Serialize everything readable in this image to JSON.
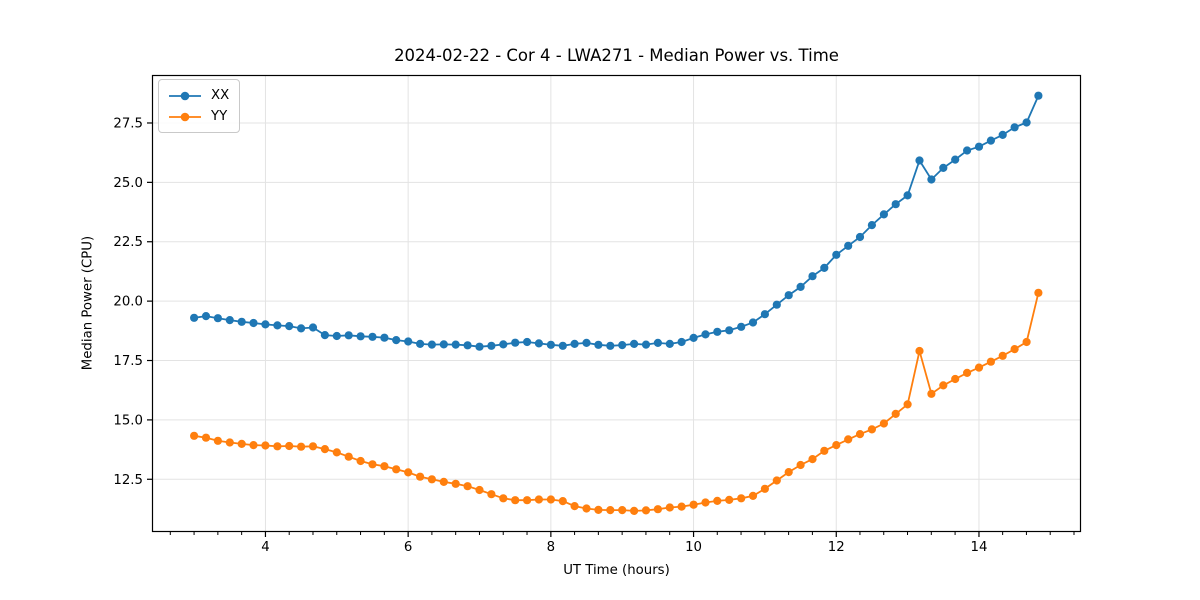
{
  "figure": {
    "title": "2024-02-22 - Cor 4 - LWA271 - Median Power vs. Time"
  },
  "chart_data": {
    "type": "line",
    "title": "2024-02-22 - Cor 4 - LWA271 - Median Power vs. Time",
    "xlabel": "UT Time (hours)",
    "ylabel": "Median Power (CPU)",
    "xlim": [
      2.41,
      15.43
    ],
    "ylim": [
      10.28,
      29.52
    ],
    "grid": true,
    "legend_position": "upper left",
    "x_ticks": [
      4,
      6,
      8,
      10,
      12,
      14
    ],
    "x_tick_labels": [
      "4",
      "6",
      "8",
      "10",
      "12",
      "14"
    ],
    "x_minor_tick_step": 0.3333,
    "y_ticks": [
      12.5,
      15.0,
      17.5,
      20.0,
      22.5,
      25.0,
      27.5
    ],
    "y_tick_labels": [
      "12.5",
      "15.0",
      "17.5",
      "20.0",
      "22.5",
      "25.0",
      "27.5"
    ],
    "marker": "circle",
    "x": [
      3.0,
      3.167,
      3.333,
      3.5,
      3.667,
      3.833,
      4.0,
      4.167,
      4.333,
      4.5,
      4.667,
      4.833,
      5.0,
      5.167,
      5.333,
      5.5,
      5.667,
      5.833,
      6.0,
      6.167,
      6.333,
      6.5,
      6.667,
      6.833,
      7.0,
      7.167,
      7.333,
      7.5,
      7.667,
      7.833,
      8.0,
      8.167,
      8.333,
      8.5,
      8.667,
      8.833,
      9.0,
      9.167,
      9.333,
      9.5,
      9.667,
      9.833,
      10.0,
      10.167,
      10.333,
      10.5,
      10.667,
      10.833,
      11.0,
      11.167,
      11.333,
      11.5,
      11.667,
      11.833,
      12.0,
      12.167,
      12.333,
      12.5,
      12.667,
      12.833,
      13.0,
      13.167,
      13.333,
      13.5,
      13.667,
      13.833,
      14.0,
      14.167,
      14.333,
      14.5,
      14.667,
      14.833
    ],
    "series": [
      {
        "name": "XX",
        "color": "#1f77b4",
        "values": [
          19.3,
          19.37,
          19.28,
          19.2,
          19.13,
          19.08,
          19.02,
          18.98,
          18.95,
          18.85,
          18.89,
          18.57,
          18.53,
          18.56,
          18.52,
          18.5,
          18.46,
          18.36,
          18.3,
          18.2,
          18.17,
          18.18,
          18.17,
          18.14,
          18.08,
          18.12,
          18.18,
          18.25,
          18.28,
          18.22,
          18.16,
          18.12,
          18.2,
          18.24,
          18.16,
          18.12,
          18.15,
          18.2,
          18.17,
          18.24,
          18.2,
          18.28,
          18.45,
          18.6,
          18.71,
          18.77,
          18.92,
          19.1,
          19.45,
          19.85,
          20.25,
          20.6,
          21.05,
          21.4,
          21.95,
          22.33,
          22.7,
          23.2,
          23.65,
          24.08,
          24.45,
          25.92,
          25.12,
          25.61,
          25.96,
          26.34,
          26.5,
          26.76,
          27.0,
          27.32,
          27.52,
          28.65
        ]
      },
      {
        "name": "YY",
        "color": "#ff7f0e",
        "values": [
          14.33,
          14.25,
          14.12,
          14.05,
          13.99,
          13.94,
          13.92,
          13.89,
          13.9,
          13.87,
          13.89,
          13.77,
          13.63,
          13.45,
          13.27,
          13.13,
          13.05,
          12.92,
          12.79,
          12.61,
          12.5,
          12.39,
          12.31,
          12.21,
          12.05,
          11.87,
          11.7,
          11.62,
          11.62,
          11.65,
          11.65,
          11.58,
          11.37,
          11.27,
          11.21,
          11.2,
          11.2,
          11.17,
          11.19,
          11.24,
          11.31,
          11.35,
          11.43,
          11.52,
          11.59,
          11.63,
          11.7,
          11.8,
          12.1,
          12.45,
          12.8,
          13.1,
          13.35,
          13.7,
          13.94,
          14.18,
          14.4,
          14.6,
          14.85,
          15.25,
          15.65,
          17.9,
          16.1,
          16.45,
          16.72,
          16.98,
          17.2,
          17.45,
          17.7,
          17.98,
          18.28,
          20.35
        ]
      }
    ]
  },
  "layout_colors": {
    "grid": "#e3e3e3",
    "spine": "#000000",
    "tick": "#000000",
    "background": "#ffffff"
  }
}
